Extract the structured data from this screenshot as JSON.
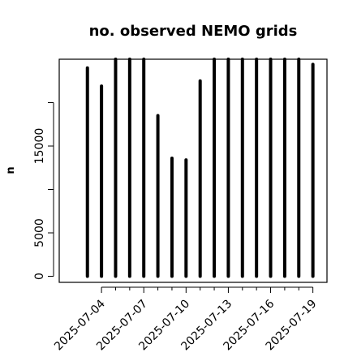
{
  "chart_data": {
    "type": "bar",
    "style": "histogram-spikes",
    "title": "no. observed NEMO grids",
    "xlabel": "",
    "ylabel": "n",
    "x": [
      "2025-07-03",
      "2025-07-04",
      "2025-07-05",
      "2025-07-06",
      "2025-07-07",
      "2025-07-08",
      "2025-07-09",
      "2025-07-10",
      "2025-07-11",
      "2025-07-12",
      "2025-07-13",
      "2025-07-14",
      "2025-07-15",
      "2025-07-16",
      "2025-07-17",
      "2025-07-18",
      "2025-07-19"
    ],
    "values": [
      24000,
      21900,
      25000,
      25000,
      25000,
      18500,
      13600,
      13400,
      22500,
      25000,
      25000,
      25000,
      25000,
      25000,
      25000,
      25000,
      24400
    ],
    "x_tick_labels": [
      "2025-07-04",
      "2025-07-07",
      "2025-07-10",
      "2025-07-13",
      "2025-07-16",
      "2025-07-19"
    ],
    "x_tick_dates": [
      "2025-07-04",
      "2025-07-07",
      "2025-07-10",
      "2025-07-13",
      "2025-07-16",
      "2025-07-19"
    ],
    "x_minor_tick_dates": [
      "2025-07-05",
      "2025-07-06",
      "2025-07-08",
      "2025-07-09",
      "2025-07-11",
      "2025-07-12",
      "2025-07-14",
      "2025-07-15",
      "2025-07-17",
      "2025-07-18"
    ],
    "xlim": [
      "2025-07-01",
      "2025-07-20"
    ],
    "y_ticks": [
      0,
      5000,
      15000
    ],
    "y_tick_labels": [
      "0",
      "5000",
      "15000"
    ],
    "y_minor_ticks": [
      10000,
      20000
    ],
    "ylim": [
      -700,
      25000
    ],
    "grid": false,
    "bar_color": "#000000"
  }
}
